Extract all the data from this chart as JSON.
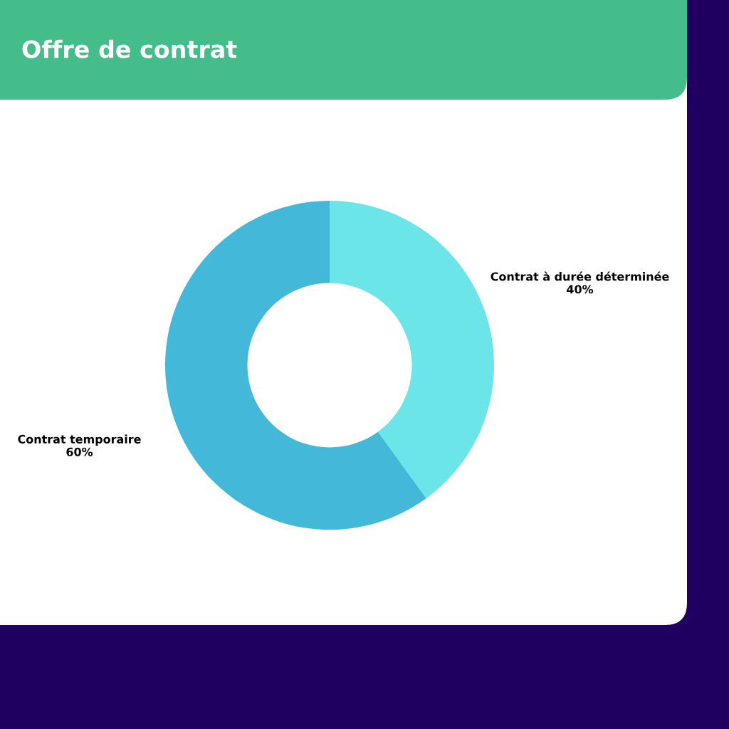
{
  "chart_data": {
    "type": "donut",
    "title": "Offre de contrat",
    "categories": [
      "Contrat à durée déterminée",
      "Contrat temporaire"
    ],
    "values": [
      40,
      60
    ],
    "value_labels": [
      "40%",
      "60%"
    ],
    "colors": [
      "#6ce5e8",
      "#44b8d8"
    ]
  }
}
